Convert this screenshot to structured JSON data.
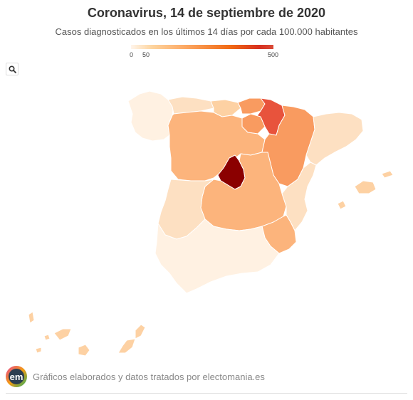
{
  "title": "Coronavirus, 14 de septiembre de 2020",
  "subtitle": "Casos diagnosticados en los últimos 14 días por cada 100.000 habitantes",
  "legend": {
    "min": 0,
    "max": 500,
    "ticks": [
      {
        "label": "0",
        "value": 0
      },
      {
        "label": "50",
        "value": 50
      },
      {
        "label": "500",
        "value": 500
      }
    ]
  },
  "colors": {
    "scale": [
      "#fff1e2",
      "#fde0c2",
      "#fdd1a3",
      "#fcb47c",
      "#f99b60",
      "#e8533c",
      "#8b0000"
    ],
    "border": "#ffffff"
  },
  "toolbar": {
    "zoom_icon": "search-icon"
  },
  "map_data": {
    "regions": [
      {
        "id": "galicia",
        "level": 0
      },
      {
        "id": "asturias",
        "level": 1
      },
      {
        "id": "cantabria",
        "level": 2
      },
      {
        "id": "pais-vasco",
        "level": 4
      },
      {
        "id": "navarra",
        "level": 5
      },
      {
        "id": "la-rioja",
        "level": 4
      },
      {
        "id": "aragon",
        "level": 4
      },
      {
        "id": "cataluna",
        "level": 1
      },
      {
        "id": "castilla-y-leon",
        "level": 3
      },
      {
        "id": "madrid",
        "level": 6
      },
      {
        "id": "castilla-la-mancha",
        "level": 3
      },
      {
        "id": "extremadura",
        "level": 1
      },
      {
        "id": "andalucia",
        "level": 0
      },
      {
        "id": "murcia",
        "level": 3
      },
      {
        "id": "comunidad-valenciana",
        "level": 1
      },
      {
        "id": "baleares",
        "level": 2
      },
      {
        "id": "canarias",
        "level": 2
      }
    ]
  },
  "footer": {
    "logo_text": "em",
    "text": "Gráficos elaborados y datos tratados por electomania.es"
  }
}
